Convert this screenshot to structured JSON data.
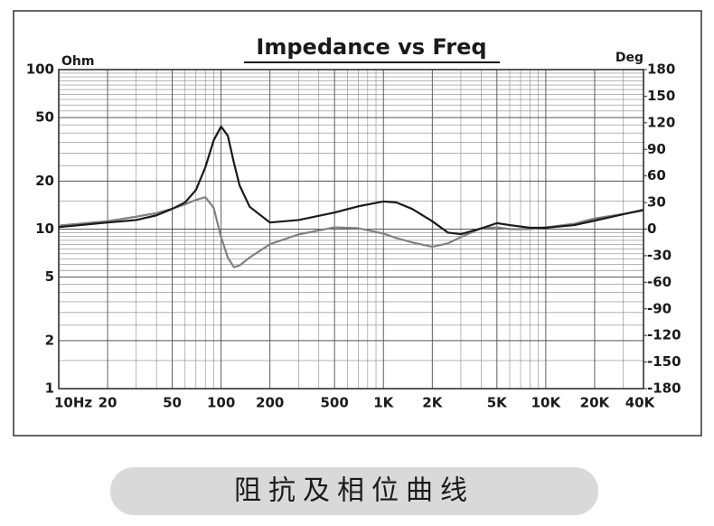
{
  "chart_data": {
    "type": "line",
    "title": "Impedance vs Freq",
    "ylabel": "Ohm",
    "y2label": "Deg",
    "x": [
      10,
      20,
      30,
      40,
      50,
      60,
      70,
      80,
      90,
      100,
      110,
      120,
      130,
      150,
      200,
      300,
      500,
      700,
      1000,
      1200,
      1500,
      2000,
      2500,
      3000,
      4000,
      5000,
      6000,
      8000,
      10000,
      15000,
      20000,
      30000,
      40000
    ],
    "series": [
      {
        "color": "#1a1a1a",
        "values": [
          10.3,
          11.0,
          11.4,
          12.2,
          13.4,
          14.7,
          17.6,
          24.4,
          36,
          44,
          38.5,
          26,
          18.8,
          13.8,
          11,
          11.4,
          12.7,
          13.9,
          14.9,
          14.7,
          13.4,
          11.2,
          9.5,
          9.3,
          10.1,
          10.9,
          10.6,
          10.2,
          10.2,
          10.6,
          11.3,
          12.4,
          13.2
        ]
      },
      {
        "color": "#808080",
        "axis": "y2",
        "values": [
          4,
          9,
          14,
          18,
          23,
          28,
          33,
          36,
          24,
          -9,
          -32,
          -43,
          -41,
          -32,
          -17,
          -6,
          2,
          1,
          -5,
          -10,
          -15,
          -20,
          -16,
          -9,
          1,
          2,
          0,
          0,
          2,
          6,
          12,
          17,
          21
        ]
      }
    ],
    "xscale": "log",
    "yscale": "log",
    "xlim": [
      10,
      40000
    ],
    "xticks": [
      {
        "value": 10,
        "label": "10Hz"
      },
      20,
      50,
      100,
      200,
      500,
      {
        "value": 1000,
        "label": "1K"
      },
      {
        "value": 2000,
        "label": "2K"
      },
      {
        "value": 5000,
        "label": "5K"
      },
      {
        "value": 10000,
        "label": "10K"
      },
      {
        "value": 20000,
        "label": "20K"
      },
      {
        "value": 40000,
        "label": "40K"
      }
    ],
    "ylim": [
      1,
      100
    ],
    "yticks": [
      1,
      2,
      5,
      10,
      20,
      50,
      100
    ],
    "y2lim": [
      -180,
      180
    ],
    "y2ticks": [
      180,
      150,
      120,
      90,
      60,
      30,
      0,
      -30,
      -60,
      -90,
      -120,
      -150,
      -180
    ],
    "grid": true
  },
  "caption": "阻抗及相位曲线"
}
